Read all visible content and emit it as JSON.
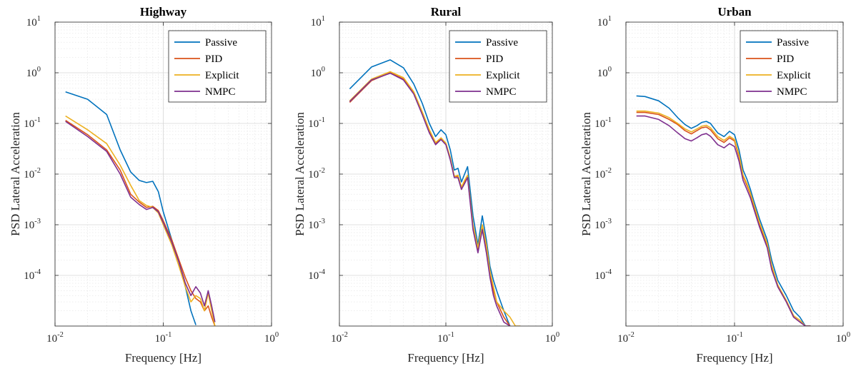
{
  "figure": {
    "xlabel": "Frequency [Hz]",
    "ylabel": "PSD Lateral Acceleration",
    "legend_position": "top-right"
  },
  "colors": {
    "Passive": "#0072BD",
    "PID": "#D95319",
    "Explicit": "#EDB120",
    "NMPC": "#7E2F8E",
    "axis": "#262626",
    "grid": "#dcdcdc"
  },
  "chart_data": [
    {
      "type": "line",
      "title": "Highway",
      "xlabel": "Frequency [Hz]",
      "ylabel": "PSD Lateral Acceleration",
      "xscale": "log",
      "yscale": "log",
      "xlim": [
        0.01,
        1
      ],
      "ylim": [
        1e-05,
        10
      ],
      "grid": true,
      "legend": "top-right",
      "xticks": [
        {
          "base": "10",
          "exp": "-2"
        },
        {
          "base": "10",
          "exp": "-1"
        },
        {
          "base": "10",
          "exp": "0"
        }
      ],
      "yticks": [
        {
          "base": "10",
          "exp": "-4"
        },
        {
          "base": "10",
          "exp": "-3"
        },
        {
          "base": "10",
          "exp": "-2"
        },
        {
          "base": "10",
          "exp": "-1"
        },
        {
          "base": "10",
          "exp": "0"
        },
        {
          "base": "10",
          "exp": "1"
        }
      ],
      "series": [
        {
          "name": "Passive",
          "x": [
            0.0125,
            0.02,
            0.03,
            0.04,
            0.05,
            0.06,
            0.07,
            0.08,
            0.09,
            0.1,
            0.12,
            0.14,
            0.16,
            0.18,
            0.2
          ],
          "y": [
            0.42,
            0.3,
            0.15,
            0.03,
            0.011,
            0.0075,
            0.0068,
            0.0072,
            0.0045,
            0.0018,
            0.0005,
            0.00018,
            6e-05,
            2e-05,
            1.05e-05
          ]
        },
        {
          "name": "PID",
          "x": [
            0.0125,
            0.02,
            0.03,
            0.04,
            0.05,
            0.06,
            0.07,
            0.08,
            0.09,
            0.1,
            0.12,
            0.14,
            0.16,
            0.18,
            0.2,
            0.22,
            0.24,
            0.26,
            0.28,
            0.3
          ],
          "y": [
            0.115,
            0.06,
            0.03,
            0.012,
            0.004,
            0.0028,
            0.0022,
            0.0023,
            0.0019,
            0.0012,
            0.0005,
            0.0002,
            9e-05,
            5e-05,
            3.5e-05,
            3e-05,
            2e-05,
            2.5e-05,
            1.5e-05,
            1e-05
          ]
        },
        {
          "name": "Explicit",
          "x": [
            0.0125,
            0.02,
            0.03,
            0.04,
            0.05,
            0.06,
            0.07,
            0.08,
            0.09,
            0.1,
            0.12,
            0.14,
            0.16,
            0.18,
            0.2,
            0.22,
            0.24,
            0.26,
            0.28,
            0.3
          ],
          "y": [
            0.14,
            0.075,
            0.04,
            0.015,
            0.006,
            0.003,
            0.0024,
            0.0022,
            0.0017,
            0.001,
            0.0004,
            0.00015,
            6e-05,
            3e-05,
            4e-05,
            3.5e-05,
            2e-05,
            4.5e-05,
            2e-05,
            1e-05
          ]
        },
        {
          "name": "NMPC",
          "x": [
            0.0125,
            0.02,
            0.03,
            0.04,
            0.05,
            0.06,
            0.07,
            0.08,
            0.09,
            0.1,
            0.12,
            0.14,
            0.16,
            0.18,
            0.2,
            0.22,
            0.24,
            0.26,
            0.28,
            0.3
          ],
          "y": [
            0.11,
            0.055,
            0.028,
            0.01,
            0.0035,
            0.0025,
            0.002,
            0.0022,
            0.0018,
            0.0011,
            0.00045,
            0.00018,
            7e-05,
            4e-05,
            6e-05,
            4.5e-05,
            2.5e-05,
            5e-05,
            2.5e-05,
            1.2e-05
          ]
        }
      ]
    },
    {
      "type": "line",
      "title": "Rural",
      "xlabel": "Frequency [Hz]",
      "ylabel": "PSD Lateral Acceleration",
      "xscale": "log",
      "yscale": "log",
      "xlim": [
        0.01,
        1
      ],
      "ylim": [
        1e-05,
        10
      ],
      "grid": true,
      "legend": "top-right",
      "xticks": [
        {
          "base": "10",
          "exp": "-2"
        },
        {
          "base": "10",
          "exp": "-1"
        },
        {
          "base": "10",
          "exp": "0"
        }
      ],
      "yticks": [
        {
          "base": "10",
          "exp": "-4"
        },
        {
          "base": "10",
          "exp": "-3"
        },
        {
          "base": "10",
          "exp": "-2"
        },
        {
          "base": "10",
          "exp": "-1"
        },
        {
          "base": "10",
          "exp": "0"
        },
        {
          "base": "10",
          "exp": "1"
        }
      ],
      "series": [
        {
          "name": "Passive",
          "x": [
            0.0125,
            0.02,
            0.03,
            0.04,
            0.05,
            0.06,
            0.07,
            0.08,
            0.09,
            0.1,
            0.11,
            0.12,
            0.13,
            0.14,
            0.15,
            0.16,
            0.18,
            0.2,
            0.22,
            0.24,
            0.26,
            0.28,
            0.3,
            0.35,
            0.4
          ],
          "y": [
            0.48,
            1.3,
            1.8,
            1.25,
            0.6,
            0.25,
            0.1,
            0.055,
            0.075,
            0.06,
            0.03,
            0.012,
            0.013,
            0.007,
            0.01,
            0.014,
            0.0015,
            0.0004,
            0.0015,
            0.0005,
            0.00015,
            8e-05,
            5e-05,
            2e-05,
            1e-05
          ]
        },
        {
          "name": "PID",
          "x": [
            0.0125,
            0.02,
            0.03,
            0.04,
            0.05,
            0.06,
            0.07,
            0.08,
            0.09,
            0.1,
            0.11,
            0.12,
            0.13,
            0.14,
            0.15,
            0.16,
            0.18,
            0.2,
            0.22,
            0.24,
            0.26,
            0.28,
            0.3,
            0.35,
            0.4
          ],
          "y": [
            0.26,
            0.7,
            1.0,
            0.75,
            0.4,
            0.16,
            0.07,
            0.04,
            0.05,
            0.04,
            0.02,
            0.009,
            0.009,
            0.005,
            0.007,
            0.009,
            0.0009,
            0.0003,
            0.0009,
            0.0003,
            0.0001,
            5e-05,
            3e-05,
            1.5e-05,
            1e-05
          ]
        },
        {
          "name": "Explicit",
          "x": [
            0.0125,
            0.02,
            0.03,
            0.04,
            0.05,
            0.06,
            0.07,
            0.08,
            0.09,
            0.1,
            0.11,
            0.12,
            0.13,
            0.14,
            0.15,
            0.16,
            0.18,
            0.2,
            0.22,
            0.24,
            0.26,
            0.28,
            0.3,
            0.35,
            0.4,
            0.45,
            0.5
          ],
          "y": [
            0.28,
            0.75,
            1.05,
            0.8,
            0.42,
            0.17,
            0.075,
            0.042,
            0.052,
            0.041,
            0.021,
            0.009,
            0.0095,
            0.0055,
            0.0075,
            0.0095,
            0.001,
            0.00035,
            0.001,
            0.0004,
            0.00012,
            6e-05,
            3e-05,
            2e-05,
            1.5e-05,
            1e-05,
            1e-05
          ]
        },
        {
          "name": "NMPC",
          "x": [
            0.0125,
            0.02,
            0.03,
            0.04,
            0.05,
            0.06,
            0.07,
            0.08,
            0.09,
            0.1,
            0.11,
            0.12,
            0.13,
            0.14,
            0.15,
            0.16,
            0.18,
            0.2,
            0.22,
            0.24,
            0.26,
            0.28,
            0.3,
            0.35,
            0.4
          ],
          "y": [
            0.27,
            0.72,
            0.98,
            0.72,
            0.38,
            0.15,
            0.065,
            0.038,
            0.048,
            0.038,
            0.019,
            0.0085,
            0.0085,
            0.005,
            0.0065,
            0.0085,
            0.0008,
            0.00028,
            0.0008,
            0.00028,
            9e-05,
            4e-05,
            2.5e-05,
            1.2e-05,
            1e-05
          ]
        }
      ]
    },
    {
      "type": "line",
      "title": "Urban",
      "xlabel": "Frequency [Hz]",
      "ylabel": "PSD Lateral Acceleration",
      "xscale": "log",
      "yscale": "log",
      "xlim": [
        0.01,
        1
      ],
      "ylim": [
        1e-05,
        10
      ],
      "grid": true,
      "legend": "top-right",
      "xticks": [
        {
          "base": "10",
          "exp": "-2"
        },
        {
          "base": "10",
          "exp": "-1"
        },
        {
          "base": "10",
          "exp": "0"
        }
      ],
      "yticks": [
        {
          "base": "10",
          "exp": "-4"
        },
        {
          "base": "10",
          "exp": "-3"
        },
        {
          "base": "10",
          "exp": "-2"
        },
        {
          "base": "10",
          "exp": "-1"
        },
        {
          "base": "10",
          "exp": "0"
        },
        {
          "base": "10",
          "exp": "1"
        }
      ],
      "series": [
        {
          "name": "Passive",
          "x": [
            0.0125,
            0.015,
            0.02,
            0.025,
            0.03,
            0.035,
            0.04,
            0.045,
            0.05,
            0.055,
            0.06,
            0.07,
            0.08,
            0.09,
            0.1,
            0.11,
            0.12,
            0.13,
            0.14,
            0.15,
            0.17,
            0.2,
            0.22,
            0.25,
            0.3,
            0.35,
            0.4,
            0.45,
            0.5
          ],
          "y": [
            0.35,
            0.34,
            0.28,
            0.2,
            0.13,
            0.095,
            0.08,
            0.09,
            0.105,
            0.11,
            0.1,
            0.065,
            0.055,
            0.07,
            0.06,
            0.03,
            0.012,
            0.008,
            0.005,
            0.003,
            0.0013,
            0.0005,
            0.0002,
            8e-05,
            4e-05,
            2e-05,
            1.5e-05,
            1e-05,
            1e-05
          ]
        },
        {
          "name": "PID",
          "x": [
            0.0125,
            0.015,
            0.02,
            0.025,
            0.03,
            0.035,
            0.04,
            0.045,
            0.05,
            0.055,
            0.06,
            0.07,
            0.08,
            0.09,
            0.1,
            0.11,
            0.12,
            0.13,
            0.14,
            0.15,
            0.17,
            0.2,
            0.22,
            0.25,
            0.3,
            0.35,
            0.4,
            0.45,
            0.5
          ],
          "y": [
            0.165,
            0.165,
            0.15,
            0.12,
            0.095,
            0.072,
            0.062,
            0.072,
            0.082,
            0.085,
            0.075,
            0.05,
            0.042,
            0.052,
            0.045,
            0.022,
            0.009,
            0.006,
            0.004,
            0.0024,
            0.001,
            0.0004,
            0.00015,
            6e-05,
            3e-05,
            1.5e-05,
            1.2e-05,
            1e-05,
            1e-05
          ]
        },
        {
          "name": "Explicit",
          "x": [
            0.0125,
            0.015,
            0.02,
            0.025,
            0.03,
            0.035,
            0.04,
            0.045,
            0.05,
            0.055,
            0.06,
            0.07,
            0.08,
            0.09,
            0.1,
            0.11,
            0.12,
            0.13,
            0.14,
            0.15,
            0.17,
            0.2,
            0.22,
            0.25,
            0.3,
            0.35,
            0.4,
            0.45,
            0.5
          ],
          "y": [
            0.175,
            0.175,
            0.16,
            0.13,
            0.1,
            0.078,
            0.068,
            0.078,
            0.088,
            0.092,
            0.082,
            0.055,
            0.046,
            0.056,
            0.048,
            0.024,
            0.0095,
            0.0065,
            0.0042,
            0.0026,
            0.0011,
            0.00042,
            0.00016,
            6.5e-05,
            3.2e-05,
            1.6e-05,
            1.3e-05,
            1e-05,
            1e-05
          ]
        },
        {
          "name": "NMPC",
          "x": [
            0.0125,
            0.015,
            0.02,
            0.025,
            0.03,
            0.035,
            0.04,
            0.045,
            0.05,
            0.055,
            0.06,
            0.07,
            0.08,
            0.09,
            0.1,
            0.11,
            0.12,
            0.13,
            0.14,
            0.15,
            0.17,
            0.2,
            0.22,
            0.25,
            0.3,
            0.35,
            0.4,
            0.45,
            0.5
          ],
          "y": [
            0.14,
            0.14,
            0.12,
            0.09,
            0.065,
            0.05,
            0.045,
            0.052,
            0.06,
            0.063,
            0.056,
            0.038,
            0.033,
            0.04,
            0.035,
            0.018,
            0.0075,
            0.005,
            0.0034,
            0.0021,
            0.0009,
            0.00035,
            0.00013,
            6e-05,
            3e-05,
            1.5e-05,
            1.2e-05,
            1e-05,
            1e-05
          ]
        }
      ]
    }
  ]
}
